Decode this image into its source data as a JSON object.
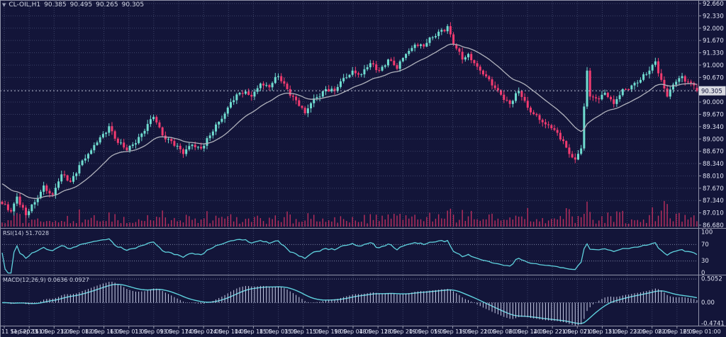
{
  "header": {
    "menu_icon": "symbol-menu",
    "symbol": "CL-OIL,H1",
    "open": "90.385",
    "high": "90.495",
    "low": "90.265",
    "close": "90.305"
  },
  "price_axis": {
    "labels": [
      "92.660",
      "92.330",
      "92.000",
      "91.670",
      "91.330",
      "91.000",
      "90.670",
      "",
      "90.000",
      "89.670",
      "89.340",
      "89.000",
      "88.670",
      "88.340",
      "88.010",
      "87.670",
      "87.340",
      "87.010",
      "86.680"
    ],
    "top": 92.66,
    "bottom": 86.68,
    "current_price": "90.305"
  },
  "time_axis": {
    "labels": [
      "11 Sep 2023",
      "11 Sep 15:00",
      "11 Sep 23:00",
      "12 Sep 08:00",
      "12 Sep 16:00",
      "13 Sep 01:00",
      "13 Sep 09:00",
      "13 Sep 17:00",
      "14 Sep 02:00",
      "14 Sep 10:00",
      "14 Sep 18:00",
      "15 Sep 03:00",
      "15 Sep 11:00",
      "15 Sep 19:00",
      "18 Sep 04:00",
      "18 Sep 12:00",
      "18 Sep 20:00",
      "19 Sep 05:00",
      "19 Sep 13:00",
      "19 Sep 21:00",
      "20 Sep 06:00",
      "20 Sep 14:00",
      "20 Sep 22:00",
      "21 Sep 07:00",
      "21 Sep 15:00",
      "21 Sep 23:00",
      "22 Sep 08:00",
      "22 Sep 16:00",
      "25 Sep 01:00"
    ]
  },
  "rsi_panel": {
    "label": "RSI(14) 51.7028",
    "axis_labels": [
      "100",
      "70",
      "30",
      "0"
    ],
    "axis_values": [
      100,
      70,
      30,
      0
    ],
    "levels": [
      70,
      30
    ],
    "range": [
      0,
      100
    ]
  },
  "macd_panel": {
    "label": "MACD(12,26,9) 0.0636 0.0927",
    "axis_labels": [
      "0.5052",
      "0.00",
      "-0.4741"
    ],
    "axis_values": [
      0.5052,
      0,
      -0.4741
    ],
    "range": [
      -0.4741,
      0.5052
    ]
  },
  "colors": {
    "background": "#131539",
    "grid": "#3b4166",
    "bull": "#6fdcd0",
    "bear": "#f23b70",
    "ma_line": "#b0b2bc",
    "volume": "#bb2f5e",
    "indicator_line": "#5fd2de",
    "macd_histogram": "#c9cee8",
    "level_line": "#7b81a2",
    "axis_text": "#dfe2f2",
    "separator": "#9093a8",
    "price_tag_bg": "#d9dae2",
    "price_tag_text": "#10123a"
  },
  "chart_data": {
    "type": "candlestick",
    "symbol": "CL-OIL",
    "timeframe": "H1",
    "bars": 235,
    "ylim": [
      86.68,
      92.66
    ],
    "x_start": "11 Sep 2023 00:00",
    "x_end": "25 Sep 01:00",
    "last_bar": {
      "open": 90.385,
      "high": 90.495,
      "low": 90.265,
      "close": 90.305
    },
    "has_volume_histogram": true,
    "overlay_moving_average": true,
    "indicators": {
      "rsi": {
        "period": 14,
        "current": 51.7028,
        "range": [
          0,
          100
        ],
        "levels": [
          30,
          70
        ]
      },
      "macd": {
        "fast": 12,
        "slow": 26,
        "signal": 9,
        "current_macd": 0.0636,
        "current_signal": 0.0927,
        "visible_range": [
          -0.4741,
          0.5052
        ]
      }
    },
    "close_path_anchors": [
      [
        0,
        87.25
      ],
      [
        3,
        87.05
      ],
      [
        5,
        87.45
      ],
      [
        8,
        86.95
      ],
      [
        11,
        87.3
      ],
      [
        14,
        87.75
      ],
      [
        17,
        87.5
      ],
      [
        20,
        88.05
      ],
      [
        23,
        87.85
      ],
      [
        26,
        88.3
      ],
      [
        30,
        88.7
      ],
      [
        33,
        89.05
      ],
      [
        36,
        89.35
      ],
      [
        39,
        88.9
      ],
      [
        42,
        88.7
      ],
      [
        47,
        89.15
      ],
      [
        51,
        89.6
      ],
      [
        54,
        89.1
      ],
      [
        57,
        88.95
      ],
      [
        61,
        88.6
      ],
      [
        64,
        88.85
      ],
      [
        67,
        88.75
      ],
      [
        70,
        89.1
      ],
      [
        74,
        89.55
      ],
      [
        77,
        90.0
      ],
      [
        80,
        90.25
      ],
      [
        84,
        90.15
      ],
      [
        87,
        90.5
      ],
      [
        90,
        90.4
      ],
      [
        93,
        90.7
      ],
      [
        96,
        90.35
      ],
      [
        99,
        90.05
      ],
      [
        102,
        89.7
      ],
      [
        105,
        90.1
      ],
      [
        109,
        90.35
      ],
      [
        112,
        90.3
      ],
      [
        115,
        90.65
      ],
      [
        118,
        90.85
      ],
      [
        121,
        90.75
      ],
      [
        124,
        91.05
      ],
      [
        127,
        90.85
      ],
      [
        130,
        91.15
      ],
      [
        133,
        90.9
      ],
      [
        136,
        91.3
      ],
      [
        139,
        91.55
      ],
      [
        142,
        91.5
      ],
      [
        145,
        91.75
      ],
      [
        148,
        91.95
      ],
      [
        150,
        92.05
      ],
      [
        152,
        91.55
      ],
      [
        155,
        91.15
      ],
      [
        157,
        91.3
      ],
      [
        159,
        91.05
      ],
      [
        162,
        90.75
      ],
      [
        165,
        90.45
      ],
      [
        168,
        90.2
      ],
      [
        171,
        89.95
      ],
      [
        174,
        90.3
      ],
      [
        177,
        89.85
      ],
      [
        180,
        89.65
      ],
      [
        183,
        89.4
      ],
      [
        186,
        89.25
      ],
      [
        189,
        88.95
      ],
      [
        191,
        88.6
      ],
      [
        193,
        88.45
      ],
      [
        195,
        88.75
      ],
      [
        197,
        90.85
      ],
      [
        198,
        90.15
      ],
      [
        200,
        90.1
      ],
      [
        203,
        90.25
      ],
      [
        206,
        89.95
      ],
      [
        209,
        90.35
      ],
      [
        212,
        90.45
      ],
      [
        215,
        90.6
      ],
      [
        218,
        90.85
      ],
      [
        220,
        91.1
      ],
      [
        222,
        90.6
      ],
      [
        224,
        90.15
      ],
      [
        227,
        90.55
      ],
      [
        229,
        90.7
      ],
      [
        231,
        90.55
      ],
      [
        233,
        90.45
      ],
      [
        234,
        90.305
      ]
    ]
  }
}
